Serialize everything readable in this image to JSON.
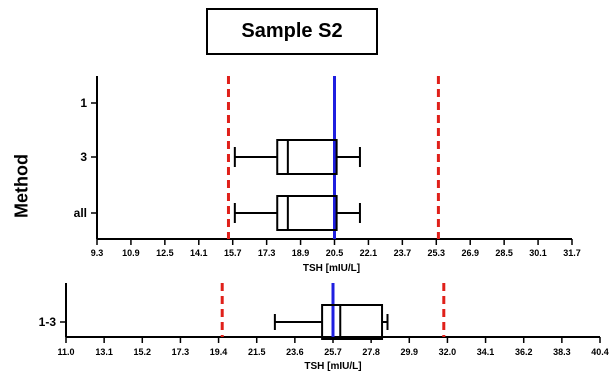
{
  "title": "Sample S2",
  "chart_data": [
    {
      "type": "boxplot",
      "ylabel": "Method",
      "xlabel": "TSH [mIU/L]",
      "xlim": [
        9.3,
        31.7
      ],
      "xticks": [
        "9.3",
        "10.9",
        "12.5",
        "14.1",
        "15.7",
        "17.3",
        "18.9",
        "20.5",
        "22.1",
        "23.7",
        "25.3",
        "26.9",
        "28.5",
        "30.1",
        "31.7"
      ],
      "categories": [
        "1",
        "3",
        "all"
      ],
      "boxes": [
        {
          "label": "1",
          "values": null
        },
        {
          "label": "3",
          "min": 15.8,
          "q1": 17.8,
          "median": 18.3,
          "q3": 20.6,
          "max": 21.7
        },
        {
          "label": "all",
          "min": 15.8,
          "q1": 17.8,
          "median": 18.3,
          "q3": 20.6,
          "max": 21.7
        }
      ],
      "reference_lines": [
        {
          "value": 20.5,
          "color": "#1f1fe0",
          "style": "solid"
        },
        {
          "value": 15.5,
          "color": "#e0201a",
          "style": "dashed"
        },
        {
          "value": 25.4,
          "color": "#e0201a",
          "style": "dashed"
        }
      ]
    },
    {
      "type": "boxplot",
      "xlabel": "TSH [mIU/L]",
      "xlim": [
        11.0,
        40.4
      ],
      "xticks": [
        "11.0",
        "13.1",
        "15.2",
        "17.3",
        "19.4",
        "21.5",
        "23.6",
        "25.7",
        "27.8",
        "29.9",
        "32.0",
        "34.1",
        "36.2",
        "38.3",
        "40.4"
      ],
      "categories": [
        "1-3"
      ],
      "boxes": [
        {
          "label": "1-3",
          "min": 22.5,
          "q1": 25.1,
          "median": 26.1,
          "q3": 28.4,
          "max": 28.7
        }
      ],
      "reference_lines": [
        {
          "value": 25.7,
          "color": "#1f1fe0",
          "style": "solid"
        },
        {
          "value": 19.6,
          "color": "#e0201a",
          "style": "dashed"
        },
        {
          "value": 31.8,
          "color": "#e0201a",
          "style": "dashed"
        }
      ]
    }
  ]
}
